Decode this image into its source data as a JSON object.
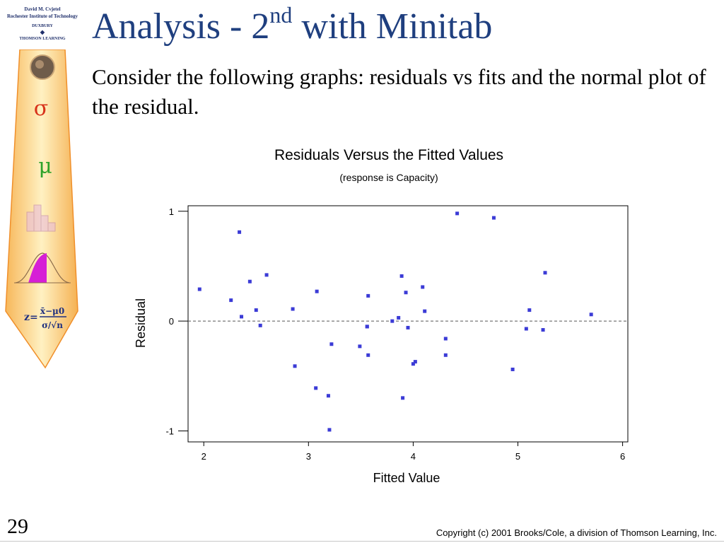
{
  "sidebar": {
    "credits": [
      "David M. Cvjetel",
      "Rochester Institute of Technology",
      "DUXBURY",
      "THOMSON LEARNING"
    ],
    "symbols": {
      "sigma": "σ",
      "mu": "μ"
    },
    "formula": {
      "lhs": "z=",
      "numerator": "x̄−μ0",
      "denominator": "σ/√n"
    },
    "icons": [
      "globe-icon",
      "histogram-icon",
      "normal-curve-icon"
    ],
    "colors": {
      "tie_light": "#ffe9a8",
      "tie_dark": "#f39a2e",
      "sigma": "#d8321a",
      "mu": "#2fa22a"
    }
  },
  "slide": {
    "title_main": "Analysis - 2",
    "title_sup": "nd",
    "title_end": " with Minitab",
    "subtitle": "Consider the following graphs: residuals vs fits and the normal plot of the residual.",
    "number": "29",
    "copyright": "Copyright (c) 2001 Brooks/Cole, a division of Thomson Learning, Inc."
  },
  "chart_data": {
    "type": "scatter",
    "title": "Residuals Versus the Fitted Values",
    "subtitle": "(response is Capacity)",
    "xlabel": "Fitted Value",
    "ylabel": "Residual",
    "xlim": [
      1.85,
      6.05
    ],
    "ylim": [
      -1.1,
      1.05
    ],
    "xticks": [
      "2",
      "3",
      "4",
      "5",
      "6"
    ],
    "yticks": [
      "-1",
      "0",
      "1"
    ],
    "reference_line_y": 0,
    "point_color": "#3b3bd6",
    "x": [
      1.96,
      2.26,
      2.34,
      2.36,
      2.44,
      2.5,
      2.54,
      2.6,
      2.85,
      2.87,
      3.07,
      3.08,
      3.19,
      3.2,
      3.22,
      3.49,
      3.56,
      3.56,
      3.57,
      3.57,
      3.8,
      3.86,
      3.89,
      3.9,
      3.93,
      3.95,
      4.0,
      4.02,
      4.09,
      4.11,
      4.31,
      4.31,
      4.42,
      4.77,
      4.95,
      5.08,
      5.11,
      5.24,
      5.26,
      5.7
    ],
    "y": [
      0.29,
      0.19,
      0.81,
      0.04,
      0.36,
      0.1,
      -0.04,
      0.42,
      0.11,
      -0.41,
      -0.61,
      0.27,
      -0.68,
      -0.99,
      -0.21,
      -0.23,
      -0.05,
      -0.05,
      0.23,
      -0.31,
      0.0,
      0.03,
      0.41,
      -0.7,
      0.26,
      -0.06,
      -0.39,
      -0.37,
      0.31,
      0.09,
      -0.16,
      -0.31,
      0.98,
      0.94,
      -0.44,
      -0.07,
      0.1,
      -0.08,
      0.44,
      0.06
    ]
  }
}
